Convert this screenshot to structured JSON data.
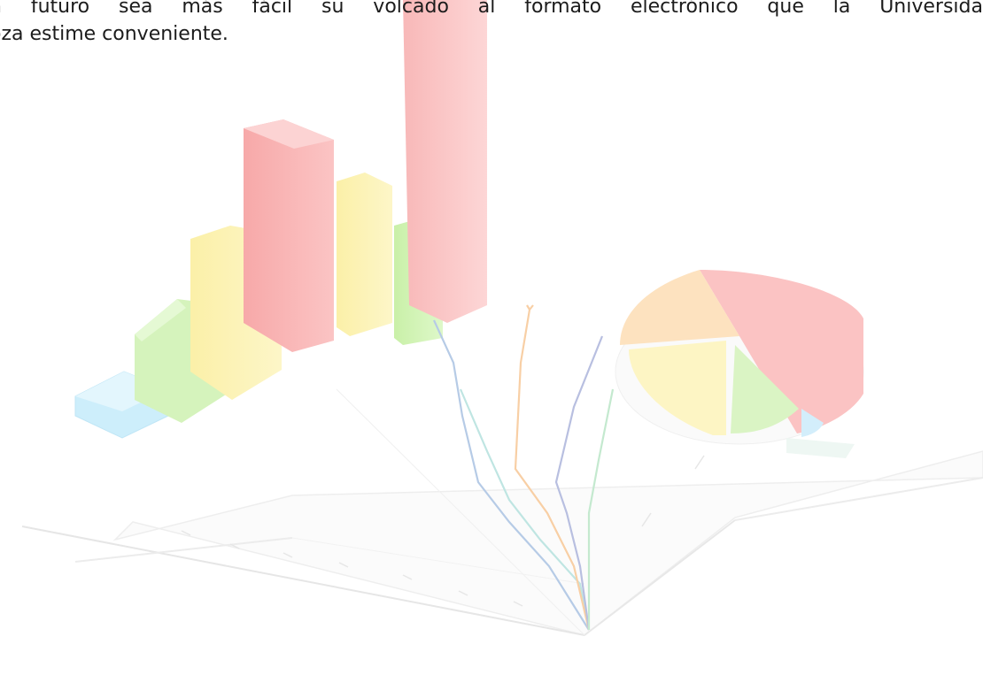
{
  "document": {
    "paragraph_line_1": "n futuro sea más fácil su volcado al formato electrónico que la Universida",
    "paragraph_line_2": "oza estime conveniente."
  }
}
